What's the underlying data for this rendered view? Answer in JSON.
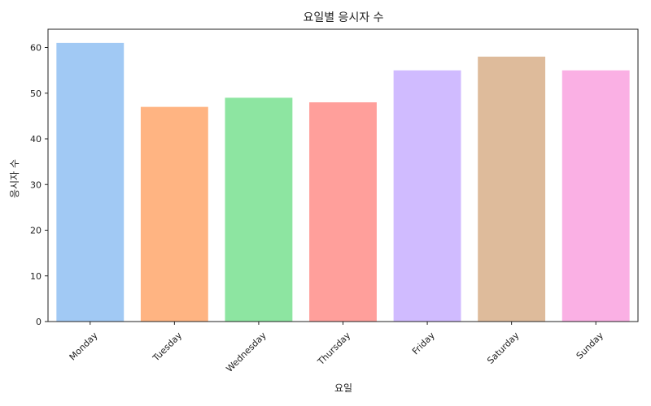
{
  "chart_data": {
    "type": "bar",
    "title": "요일별 응시자 수",
    "xlabel": "요일",
    "ylabel": "응시자 수",
    "categories": [
      "Monday",
      "Tuesday",
      "Wednesday",
      "Thursday",
      "Friday",
      "Saturday",
      "Sunday"
    ],
    "values": [
      61,
      47,
      49,
      48,
      55,
      58,
      55
    ],
    "ylim": [
      0,
      64
    ],
    "yticks": [
      0,
      10,
      20,
      30,
      40,
      50,
      60
    ],
    "colors": [
      "#a1c9f4",
      "#ffb482",
      "#8de5a1",
      "#ff9f9b",
      "#d0bbff",
      "#debb9b",
      "#fab0e4"
    ],
    "grid": false,
    "legend": "none"
  }
}
